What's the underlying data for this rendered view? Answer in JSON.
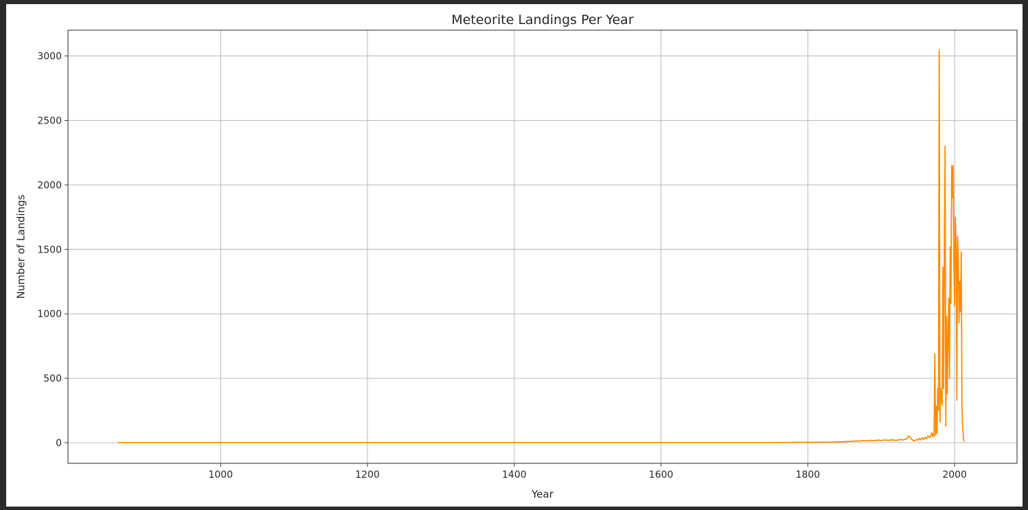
{
  "chart_data": {
    "type": "line",
    "title": "Meteorite Landings Per Year",
    "xlabel": "Year",
    "ylabel": "Number of Landings",
    "xlim": [
      792,
      2085
    ],
    "ylim": [
      -160,
      3200
    ],
    "xticks": [
      1000,
      1200,
      1400,
      1600,
      1800,
      2000
    ],
    "xtick_labels": [
      "1000",
      "1200",
      "1400",
      "1600",
      "1800",
      "2000"
    ],
    "yticks": [
      0,
      500,
      1000,
      1500,
      2000,
      2500,
      3000
    ],
    "ytick_labels": [
      "0",
      "500",
      "1000",
      "1500",
      "2000",
      "2500",
      "3000"
    ],
    "grid": true,
    "series": [
      {
        "color": "#ff8c00",
        "points": [
          [
            860,
            1
          ],
          [
            1000,
            1
          ],
          [
            1200,
            1
          ],
          [
            1400,
            1
          ],
          [
            1600,
            1
          ],
          [
            1700,
            1
          ],
          [
            1750,
            1
          ],
          [
            1780,
            2
          ],
          [
            1800,
            3
          ],
          [
            1810,
            2
          ],
          [
            1820,
            4
          ],
          [
            1830,
            3
          ],
          [
            1840,
            6
          ],
          [
            1850,
            8
          ],
          [
            1855,
            10
          ],
          [
            1860,
            11
          ],
          [
            1865,
            14
          ],
          [
            1870,
            12
          ],
          [
            1875,
            17
          ],
          [
            1880,
            15
          ],
          [
            1885,
            18
          ],
          [
            1890,
            16
          ],
          [
            1895,
            20
          ],
          [
            1900,
            17
          ],
          [
            1905,
            21
          ],
          [
            1910,
            18
          ],
          [
            1915,
            22
          ],
          [
            1920,
            17
          ],
          [
            1925,
            24
          ],
          [
            1930,
            22
          ],
          [
            1935,
            30
          ],
          [
            1937,
            52
          ],
          [
            1939,
            45
          ],
          [
            1941,
            28
          ],
          [
            1943,
            20
          ],
          [
            1945,
            14
          ],
          [
            1948,
            25
          ],
          [
            1950,
            20
          ],
          [
            1952,
            33
          ],
          [
            1954,
            22
          ],
          [
            1956,
            38
          ],
          [
            1958,
            26
          ],
          [
            1960,
            42
          ],
          [
            1962,
            30
          ],
          [
            1964,
            52
          ],
          [
            1966,
            40
          ],
          [
            1968,
            58
          ],
          [
            1969,
            78
          ],
          [
            1970,
            48
          ],
          [
            1971,
            64
          ],
          [
            1972,
            50
          ],
          [
            1973,
            690
          ],
          [
            1974,
            60
          ],
          [
            1975,
            280
          ],
          [
            1976,
            70
          ],
          [
            1977,
            420
          ],
          [
            1978,
            250
          ],
          [
            1979,
            3046
          ],
          [
            1980,
            160
          ],
          [
            1981,
            420
          ],
          [
            1982,
            360
          ],
          [
            1983,
            290
          ],
          [
            1984,
            1360
          ],
          [
            1985,
            420
          ],
          [
            1986,
            1510
          ],
          [
            1987,
            2300
          ],
          [
            1988,
            130
          ],
          [
            1989,
            980
          ],
          [
            1990,
            380
          ],
          [
            1991,
            830
          ],
          [
            1992,
            1120
          ],
          [
            1993,
            500
          ],
          [
            1994,
            1520
          ],
          [
            1995,
            1080
          ],
          [
            1996,
            2150
          ],
          [
            1997,
            1900
          ],
          [
            1998,
            2150
          ],
          [
            1999,
            1400
          ],
          [
            2000,
            1060
          ],
          [
            2001,
            1750
          ],
          [
            2002,
            1520
          ],
          [
            2003,
            330
          ],
          [
            2004,
            1600
          ],
          [
            2005,
            1450
          ],
          [
            2006,
            930
          ],
          [
            2007,
            1250
          ],
          [
            2008,
            1020
          ],
          [
            2009,
            1480
          ],
          [
            2010,
            280
          ],
          [
            2011,
            120
          ],
          [
            2012,
            40
          ],
          [
            2013,
            8
          ]
        ]
      }
    ]
  }
}
